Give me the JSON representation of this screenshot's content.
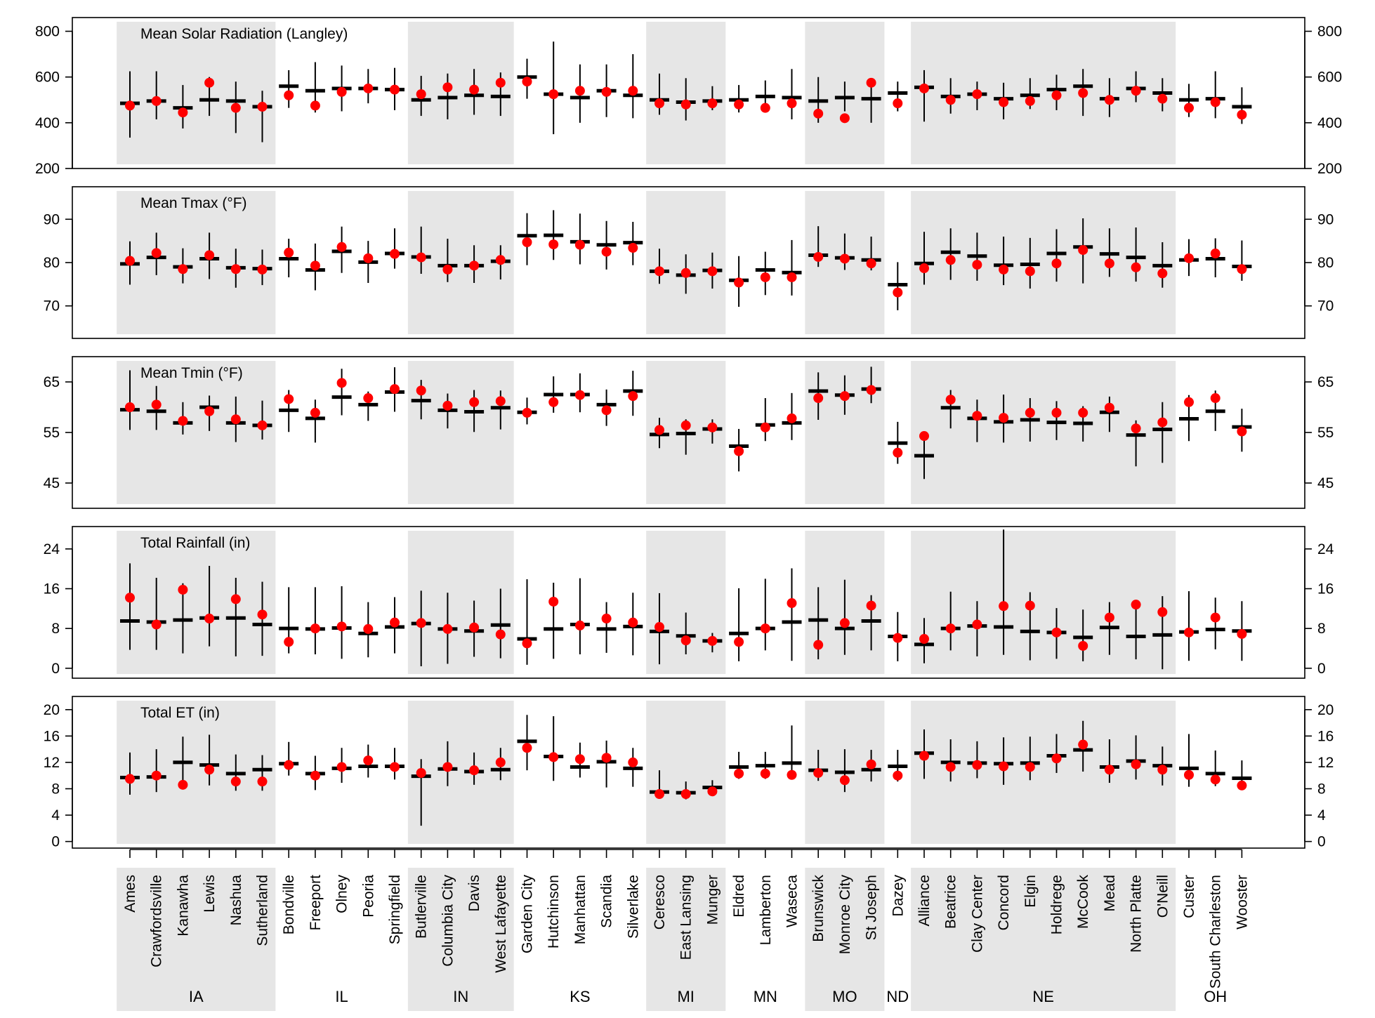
{
  "chart_data": {
    "type": "point-range",
    "description": "Per-station climate summaries: black bar = long-term median with whisker range, red dot = current season value",
    "stations": [
      "Ames",
      "Crawfordsville",
      "Kanawha",
      "Lewis",
      "Nashua",
      "Sutherland",
      "Bondville",
      "Freeport",
      "Olney",
      "Peoria",
      "Springfield",
      "Butlerville",
      "Columbia City",
      "Davis",
      "West Lafayette",
      "Garden City",
      "Hutchinson",
      "Manhattan",
      "Scandia",
      "Silverlake",
      "Ceresco",
      "East Lansing",
      "Munger",
      "Eldred",
      "Lamberton",
      "Waseca",
      "Brunswick",
      "Monroe City",
      "St Joseph",
      "Dazey",
      "Alliance",
      "Beatrice",
      "Clay Center",
      "Concord",
      "Elgin",
      "Holdrege",
      "McCook",
      "Mead",
      "North Platte",
      "O'Neill",
      "Custer",
      "South Charleston",
      "Wooster"
    ],
    "states": [
      {
        "name": "IA",
        "count": 6,
        "shaded": true
      },
      {
        "name": "IL",
        "count": 5,
        "shaded": false
      },
      {
        "name": "IN",
        "count": 4,
        "shaded": true
      },
      {
        "name": "KS",
        "count": 5,
        "shaded": false
      },
      {
        "name": "MI",
        "count": 3,
        "shaded": true
      },
      {
        "name": "MN",
        "count": 3,
        "shaded": false
      },
      {
        "name": "MO",
        "count": 3,
        "shaded": true
      },
      {
        "name": "ND",
        "count": 1,
        "shaded": false
      },
      {
        "name": "NE",
        "count": 10,
        "shaded": true
      },
      {
        "name": "OH",
        "count": 3,
        "shaded": false
      }
    ],
    "panels": [
      {
        "title": "Mean Solar Radiation (Langley)",
        "ylim": [
          200,
          860
        ],
        "yticks": [
          200,
          400,
          600,
          800
        ],
        "median": [
          485,
          495,
          465,
          500,
          495,
          470,
          560,
          540,
          550,
          550,
          545,
          500,
          510,
          520,
          515,
          600,
          525,
          510,
          540,
          520,
          500,
          490,
          495,
          500,
          515,
          510,
          495,
          510,
          505,
          530,
          555,
          515,
          525,
          505,
          520,
          545,
          560,
          505,
          550,
          530,
          500,
          505,
          470
        ],
        "low": [
          335,
          415,
          375,
          430,
          355,
          315,
          465,
          445,
          450,
          485,
          455,
          430,
          415,
          435,
          430,
          505,
          350,
          400,
          425,
          420,
          435,
          410,
          455,
          445,
          455,
          415,
          400,
          450,
          400,
          450,
          405,
          440,
          455,
          415,
          460,
          455,
          430,
          425,
          490,
          450,
          425,
          420,
          395
        ],
        "high": [
          625,
          625,
          565,
          600,
          580,
          540,
          630,
          665,
          650,
          635,
          640,
          605,
          615,
          635,
          620,
          680,
          755,
          655,
          655,
          700,
          615,
          595,
          560,
          565,
          585,
          635,
          600,
          580,
          595,
          580,
          630,
          595,
          580,
          575,
          595,
          610,
          635,
          595,
          625,
          595,
          570,
          625,
          555
        ],
        "current": [
          475,
          495,
          445,
          575,
          465,
          470,
          520,
          475,
          535,
          550,
          545,
          525,
          555,
          545,
          575,
          580,
          525,
          540,
          535,
          540,
          485,
          480,
          485,
          480,
          465,
          485,
          440,
          420,
          575,
          485,
          550,
          500,
          525,
          490,
          495,
          520,
          530,
          500,
          540,
          505,
          465,
          490,
          435
        ]
      },
      {
        "title": "Mean Tmax (°F)",
        "ylim": [
          62.5,
          97.5
        ],
        "yticks": [
          70,
          80,
          90
        ],
        "median": [
          79.7,
          81.2,
          79.0,
          80.9,
          78.8,
          78.6,
          80.9,
          78.3,
          82.6,
          80.1,
          82.1,
          81.3,
          79.3,
          79.3,
          80.3,
          86.2,
          86.3,
          84.8,
          84.1,
          84.6,
          78.0,
          77.1,
          78.2,
          75.9,
          78.3,
          77.7,
          81.7,
          81.1,
          80.6,
          74.9,
          79.8,
          82.4,
          81.5,
          79.4,
          79.6,
          82.1,
          83.6,
          82.0,
          81.2,
          79.3,
          80.6,
          80.9,
          79.1
        ],
        "low": [
          74.9,
          77.1,
          75.2,
          76.2,
          74.2,
          74.8,
          76.6,
          73.6,
          77.6,
          75.3,
          78.6,
          77.4,
          75.5,
          75.3,
          76.1,
          79.4,
          80.6,
          79.6,
          78.4,
          79.4,
          75.1,
          72.8,
          74.0,
          69.8,
          72.5,
          72.4,
          79.0,
          78.3,
          78.2,
          69.0,
          74.9,
          76.0,
          75.8,
          74.8,
          74.0,
          75.6,
          75.2,
          76.7,
          75.6,
          74.2,
          76.9,
          76.6,
          75.8
        ],
        "high": [
          84.9,
          86.9,
          83.3,
          86.9,
          83.2,
          83.0,
          85.5,
          84.4,
          88.3,
          85.0,
          87.9,
          88.3,
          85.5,
          84.0,
          84.0,
          91.4,
          92.1,
          91.3,
          89.6,
          89.4,
          83.2,
          81.9,
          82.3,
          81.5,
          82.5,
          85.2,
          88.4,
          86.7,
          86.0,
          80.1,
          87.1,
          87.9,
          86.9,
          86.0,
          85.7,
          87.7,
          90.2,
          87.9,
          88.1,
          84.7,
          85.4,
          85.6,
          85.1
        ],
        "current": [
          80.4,
          82.2,
          78.5,
          81.7,
          78.5,
          78.4,
          82.3,
          79.3,
          83.6,
          81.0,
          82.0,
          81.2,
          78.4,
          79.3,
          80.6,
          84.7,
          84.2,
          84.1,
          82.5,
          83.4,
          78.0,
          77.6,
          78.0,
          75.4,
          76.6,
          76.6,
          81.3,
          80.9,
          79.8,
          73.1,
          78.7,
          80.6,
          79.5,
          78.4,
          78.0,
          79.8,
          82.9,
          79.8,
          78.9,
          77.5,
          81.0,
          82.1,
          78.5
        ]
      },
      {
        "title": "Mean Tmin (°F)",
        "ylim": [
          40,
          70
        ],
        "yticks": [
          45,
          55,
          65
        ],
        "median": [
          59.5,
          59.2,
          56.9,
          60.0,
          56.9,
          56.4,
          59.4,
          57.8,
          62.0,
          60.5,
          63.0,
          61.3,
          59.4,
          59.1,
          59.9,
          59.0,
          62.5,
          62.5,
          60.5,
          63.2,
          54.6,
          54.8,
          55.7,
          52.3,
          56.5,
          56.9,
          63.2,
          62.4,
          63.6,
          52.9,
          50.4,
          59.9,
          57.8,
          57.1,
          57.5,
          57.0,
          56.8,
          59.0,
          54.5,
          55.6,
          57.7,
          59.2,
          56.1
        ],
        "low": [
          55.5,
          55.5,
          54.6,
          55.3,
          53.1,
          53.6,
          55.1,
          53.0,
          58.4,
          57.3,
          59.1,
          57.6,
          55.8,
          55.1,
          55.6,
          56.6,
          58.9,
          59.0,
          56.3,
          58.3,
          51.9,
          50.6,
          52.8,
          47.3,
          53.3,
          53.5,
          57.5,
          58.5,
          60.8,
          48.8,
          45.8,
          55.8,
          53.1,
          53.0,
          53.2,
          53.5,
          53.2,
          55.1,
          48.3,
          49.0,
          53.3,
          55.3,
          51.2
        ],
        "high": [
          67.3,
          64.2,
          61.0,
          62.3,
          62.1,
          61.3,
          63.4,
          61.5,
          67.6,
          63.1,
          67.9,
          65.4,
          62.7,
          63.4,
          63.3,
          61.9,
          66.1,
          66.7,
          63.5,
          67.2,
          57.9,
          57.6,
          57.6,
          55.7,
          61.8,
          62.8,
          66.9,
          66.3,
          68.0,
          57.1,
          55.0,
          63.4,
          61.5,
          62.5,
          61.8,
          61.2,
          60.2,
          62.1,
          57.4,
          61.0,
          62.4,
          63.3,
          59.7
        ],
        "current": [
          60.0,
          60.5,
          57.3,
          59.2,
          57.6,
          56.4,
          61.6,
          58.9,
          64.8,
          61.8,
          63.6,
          63.3,
          60.3,
          61.0,
          61.2,
          58.9,
          61.0,
          62.4,
          59.4,
          62.2,
          55.5,
          56.4,
          56.0,
          51.3,
          56.0,
          57.8,
          61.8,
          62.2,
          63.4,
          51.0,
          54.3,
          61.5,
          58.3,
          57.9,
          58.9,
          58.9,
          58.9,
          59.9,
          55.8,
          57.0,
          61.0,
          61.8,
          55.2
        ]
      },
      {
        "title": "Total Rainfall (in)",
        "ylim": [
          -2,
          28.5
        ],
        "yticks": [
          0,
          8,
          16,
          24
        ],
        "median": [
          9.5,
          9.3,
          9.7,
          10.1,
          10.1,
          8.8,
          8.0,
          7.9,
          8.1,
          7.0,
          8.3,
          9.0,
          7.9,
          7.5,
          8.7,
          5.9,
          7.9,
          8.8,
          7.9,
          8.4,
          7.4,
          6.5,
          5.5,
          7.0,
          8.0,
          9.3,
          9.7,
          8.0,
          9.5,
          6.4,
          4.8,
          8.0,
          8.5,
          8.3,
          7.4,
          7.2,
          6.2,
          8.2,
          6.4,
          6.7,
          7.3,
          7.8,
          7.5
        ],
        "low": [
          3.7,
          3.7,
          3.0,
          4.4,
          2.4,
          2.5,
          3.0,
          2.8,
          1.9,
          2.2,
          3.0,
          0.4,
          0.9,
          2.3,
          2.0,
          0.7,
          1.9,
          2.8,
          3.1,
          2.6,
          0.8,
          2.8,
          3.2,
          1.4,
          3.6,
          1.5,
          1.8,
          2.7,
          3.6,
          1.4,
          1.0,
          3.6,
          2.4,
          2.7,
          1.6,
          1.9,
          1.4,
          2.7,
          1.8,
          -0.2,
          1.5,
          3.8,
          1.5
        ],
        "high": [
          21.1,
          18.2,
          17.1,
          20.6,
          18.2,
          17.4,
          16.3,
          16.3,
          16.5,
          13.3,
          14.3,
          15.6,
          15.2,
          13.6,
          16.0,
          17.9,
          17.2,
          18.1,
          13.3,
          15.2,
          15.1,
          11.2,
          7.1,
          16.1,
          18.0,
          20.1,
          16.3,
          17.8,
          14.7,
          11.3,
          10.1,
          15.4,
          13.5,
          27.9,
          15.3,
          12.1,
          11.8,
          13.3,
          13.4,
          14.5,
          15.5,
          14.2,
          13.5
        ],
        "current": [
          14.2,
          8.8,
          15.8,
          10.0,
          13.9,
          10.8,
          5.3,
          8.0,
          8.4,
          7.9,
          9.2,
          9.1,
          7.9,
          8.2,
          6.8,
          5.0,
          13.4,
          8.6,
          10.0,
          9.2,
          8.3,
          5.6,
          5.5,
          5.3,
          8.0,
          13.1,
          4.7,
          9.1,
          12.6,
          6.1,
          5.9,
          8.0,
          8.8,
          12.5,
          12.6,
          7.2,
          4.5,
          10.2,
          12.8,
          11.3,
          7.2,
          10.2,
          6.9
        ]
      },
      {
        "title": "Total ET (in)",
        "ylim": [
          -1,
          22
        ],
        "yticks": [
          0,
          4,
          8,
          12,
          16,
          20
        ],
        "median": [
          9.7,
          9.8,
          12.0,
          11.6,
          10.3,
          10.9,
          11.8,
          10.3,
          11.1,
          11.4,
          11.4,
          9.9,
          11.0,
          10.6,
          10.9,
          15.2,
          12.9,
          11.3,
          12.1,
          11.1,
          7.5,
          7.4,
          8.2,
          11.3,
          11.5,
          11.9,
          10.8,
          10.5,
          10.9,
          11.4,
          13.4,
          12.0,
          11.9,
          11.8,
          11.9,
          13.0,
          13.9,
          11.3,
          12.2,
          11.5,
          11.1,
          10.3,
          9.6
        ],
        "low": [
          7.1,
          7.5,
          7.9,
          8.5,
          7.7,
          7.7,
          10.0,
          7.8,
          8.9,
          9.7,
          9.4,
          2.4,
          8.4,
          8.6,
          9.3,
          10.8,
          9.2,
          9.7,
          8.2,
          8.3,
          6.5,
          6.4,
          7.0,
          9.5,
          9.5,
          9.4,
          9.2,
          7.5,
          9.1,
          9.1,
          9.5,
          9.1,
          9.6,
          8.6,
          9.3,
          10.4,
          10.6,
          8.9,
          9.4,
          8.5,
          8.3,
          8.4,
          8.0
        ],
        "high": [
          13.5,
          14.0,
          15.9,
          16.2,
          13.2,
          13.1,
          15.1,
          13.0,
          14.2,
          14.7,
          14.2,
          12.5,
          15.2,
          13.5,
          14.2,
          19.2,
          19.0,
          15.0,
          15.3,
          14.2,
          10.8,
          9.1,
          9.3,
          13.6,
          13.6,
          17.6,
          13.9,
          14.0,
          13.9,
          13.9,
          17.0,
          15.5,
          15.2,
          15.8,
          15.9,
          16.3,
          18.3,
          15.5,
          16.1,
          14.4,
          16.3,
          13.8,
          12.3
        ],
        "current": [
          9.5,
          10.0,
          8.6,
          10.9,
          9.1,
          9.1,
          11.6,
          10.0,
          11.3,
          12.3,
          11.3,
          10.4,
          11.3,
          10.8,
          12.0,
          14.2,
          12.8,
          12.5,
          12.7,
          12.0,
          7.2,
          7.2,
          7.6,
          10.3,
          10.3,
          10.1,
          10.4,
          9.3,
          11.7,
          10.0,
          13.0,
          11.3,
          11.6,
          11.4,
          11.3,
          12.6,
          14.7,
          10.9,
          11.7,
          10.9,
          10.1,
          9.4,
          8.5
        ]
      }
    ]
  }
}
